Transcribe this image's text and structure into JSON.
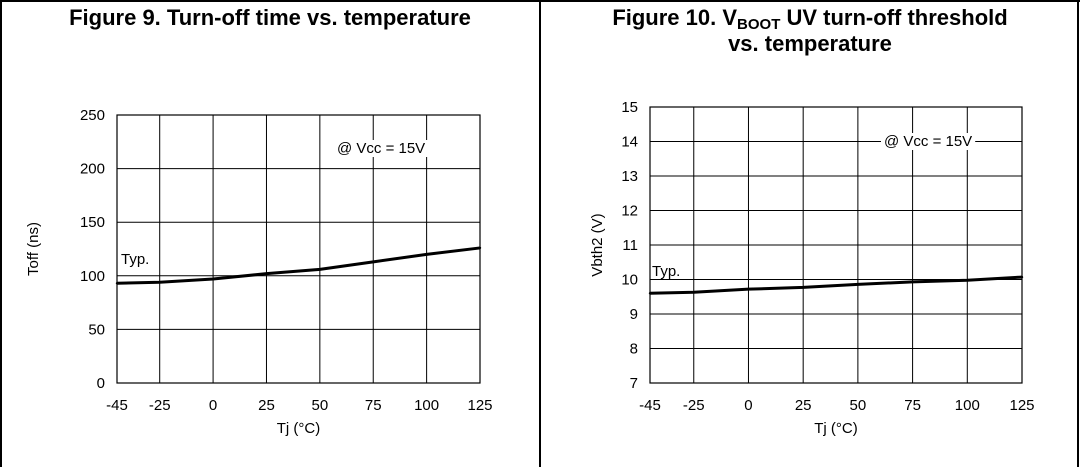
{
  "figures": [
    {
      "title": "Figure 9. Turn-off time vs. temperature",
      "annotation": "@ Vcc = 15V",
      "curve_label": "Typ."
    },
    {
      "title_prefix": "Figure 10. V",
      "title_subscript": "BOOT",
      "title_suffix": " UV turn-off threshold",
      "title_line2": "vs. temperature",
      "annotation": "@ Vcc = 15V",
      "curve_label": "Typ."
    }
  ],
  "chart_data": [
    {
      "type": "line",
      "title": "Figure 9. Turn-off time vs. temperature",
      "xlabel": "Tj (°C)",
      "ylabel": "Toff (ns)",
      "xlim": [
        -45,
        125
      ],
      "ylim": [
        0,
        250
      ],
      "xticks": [
        -45,
        -25,
        0,
        25,
        50,
        75,
        100,
        125
      ],
      "yticks": [
        0,
        50,
        100,
        150,
        200,
        250
      ],
      "grid": true,
      "annotation": "@ Vcc = 15V",
      "series": [
        {
          "name": "Typ.",
          "x": [
            -45,
            -25,
            0,
            25,
            50,
            75,
            100,
            125
          ],
          "y": [
            93,
            94,
            97,
            102,
            106,
            113,
            120,
            126
          ]
        }
      ]
    },
    {
      "type": "line",
      "title": "Figure 10. VBOOT UV turn-off threshold vs. temperature",
      "xlabel": "Tj (°C)",
      "ylabel": "Vbth2 (V)",
      "xlim": [
        -45,
        125
      ],
      "ylim": [
        7,
        15
      ],
      "xticks": [
        -45,
        -25,
        0,
        25,
        50,
        75,
        100,
        125
      ],
      "yticks": [
        7,
        8,
        9,
        10,
        11,
        12,
        13,
        14,
        15
      ],
      "grid": true,
      "annotation": "@ Vcc = 15V",
      "series": [
        {
          "name": "Typ.",
          "x": [
            -45,
            -25,
            0,
            25,
            50,
            75,
            100,
            125
          ],
          "y": [
            9.6,
            9.63,
            9.72,
            9.77,
            9.86,
            9.93,
            9.98,
            10.07
          ]
        }
      ]
    }
  ]
}
